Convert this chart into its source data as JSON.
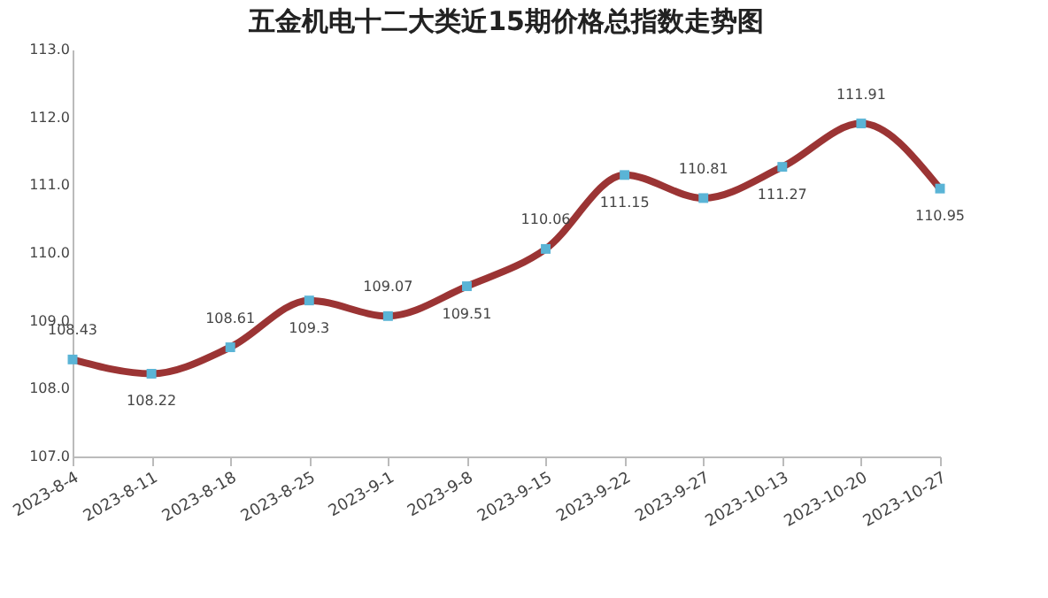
{
  "chart_data": {
    "type": "line",
    "title": "五金机电十二大类近15期价格总指数走势图",
    "categories": [
      "2023-8-4",
      "2023-8-11",
      "2023-8-18",
      "2023-8-25",
      "2023-9-1",
      "2023-9-8",
      "2023-9-15",
      "2023-9-22",
      "2023-9-27",
      "2023-10-13",
      "2023-10-20",
      "2023-10-27"
    ],
    "series": [
      {
        "color": "#9b3434",
        "values": [
          108.43,
          108.22,
          108.61,
          109.3,
          109.07,
          109.51,
          110.06,
          111.15,
          110.81,
          111.27,
          111.91,
          110.95
        ]
      }
    ],
    "ylim": [
      107.0,
      113.0
    ],
    "yticks": [
      {
        "value": 107,
        "label": "107.0"
      },
      {
        "value": 108,
        "label": "108.0"
      },
      {
        "value": 109,
        "label": "109.0"
      },
      {
        "value": 110,
        "label": "110.0"
      },
      {
        "value": 111,
        "label": "111.0"
      },
      {
        "value": 112,
        "label": "112.0"
      },
      {
        "value": 113,
        "label": "113.0"
      }
    ],
    "data_labels": true,
    "marker": "square",
    "line_style": "solid",
    "grid": false
  }
}
